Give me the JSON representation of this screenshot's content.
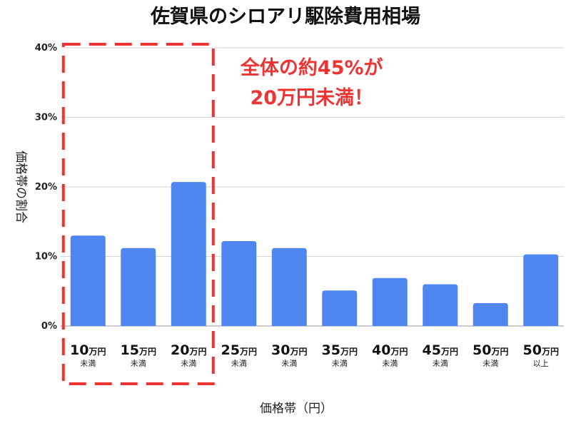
{
  "chart_data": {
    "type": "bar",
    "title": "佐賀県のシロアリ駆除費用相場",
    "xlabel": "価格帯（円）",
    "ylabel": "価格帯の割合",
    "ylim": [
      0,
      40
    ],
    "yticks": [
      "0%",
      "10%",
      "20%",
      "30%",
      "40%"
    ],
    "grid": true,
    "categories": [
      {
        "main": "10",
        "unit": "万円",
        "sub": "未満"
      },
      {
        "main": "15",
        "unit": "万円",
        "sub": "未満"
      },
      {
        "main": "20",
        "unit": "万円",
        "sub": "未満"
      },
      {
        "main": "25",
        "unit": "万円",
        "sub": "未満"
      },
      {
        "main": "30",
        "unit": "万円",
        "sub": "未満"
      },
      {
        "main": "35",
        "unit": "万円",
        "sub": "未満"
      },
      {
        "main": "40",
        "unit": "万円",
        "sub": "未満"
      },
      {
        "main": "45",
        "unit": "万円",
        "sub": "未満"
      },
      {
        "main": "50",
        "unit": "万円",
        "sub": "未満"
      },
      {
        "main": "50",
        "unit": "万円",
        "sub": "以上"
      }
    ],
    "values": [
      13,
      11.2,
      20.7,
      12.2,
      11.2,
      5.1,
      6.9,
      6.0,
      3.3,
      10.3
    ],
    "bar_color": "#4f86f0",
    "highlight": {
      "first_category": 0,
      "last_category": 2,
      "color": "#ee3333",
      "annotation": [
        "全体の約45%が",
        "20万円未満！"
      ]
    }
  }
}
